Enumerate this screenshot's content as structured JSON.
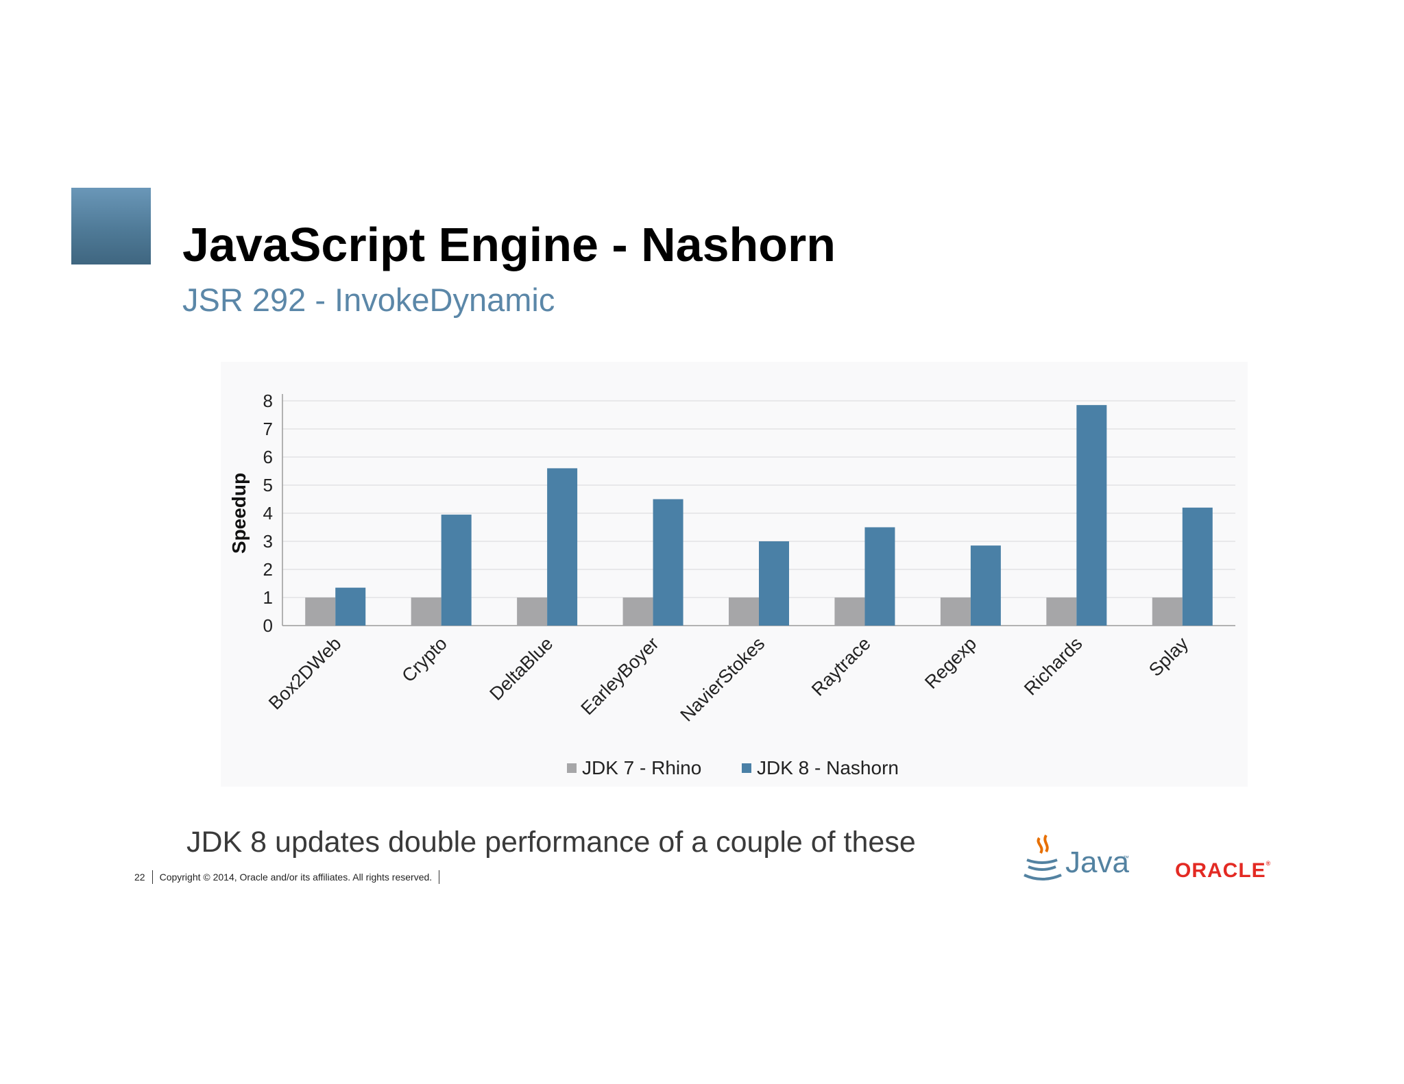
{
  "slide": {
    "title": "JavaScript Engine - Nashorn",
    "subtitle": "JSR 292 - InvokeDynamic",
    "caption": "JDK 8 updates double performance of a couple of these",
    "page_number": "22",
    "copyright": "Copyright © 2014, Oracle and/or its affiliates. All rights reserved.",
    "logos": {
      "java": "Java",
      "java_tm": "™",
      "oracle": "ORACLE",
      "oracle_mark": "®"
    },
    "colors": {
      "accent": "#5b87a8",
      "oracle_red": "#e32a23"
    }
  },
  "chart_data": {
    "type": "bar",
    "categories": [
      "Box2DWeb",
      "Crypto",
      "DeltaBlue",
      "EarleyBoyer",
      "NavierStokes",
      "Raytrace",
      "Regexp",
      "Richards",
      "Splay"
    ],
    "series": [
      {
        "name": "JDK 7 - Rhino",
        "color": "#a6a6a8",
        "values": [
          1,
          1,
          1,
          1,
          1,
          1,
          1,
          1,
          1
        ]
      },
      {
        "name": "JDK 8 - Nashorn",
        "color": "#4a80a6",
        "values": [
          1.35,
          3.95,
          5.6,
          4.5,
          3.0,
          3.5,
          2.85,
          7.85,
          4.2
        ]
      }
    ],
    "ylabel": "Speedup",
    "ylim": [
      0,
      8
    ],
    "yticks": [
      0,
      1,
      2,
      3,
      4,
      5,
      6,
      7,
      8
    ],
    "grid": true,
    "legend": "bottom"
  }
}
